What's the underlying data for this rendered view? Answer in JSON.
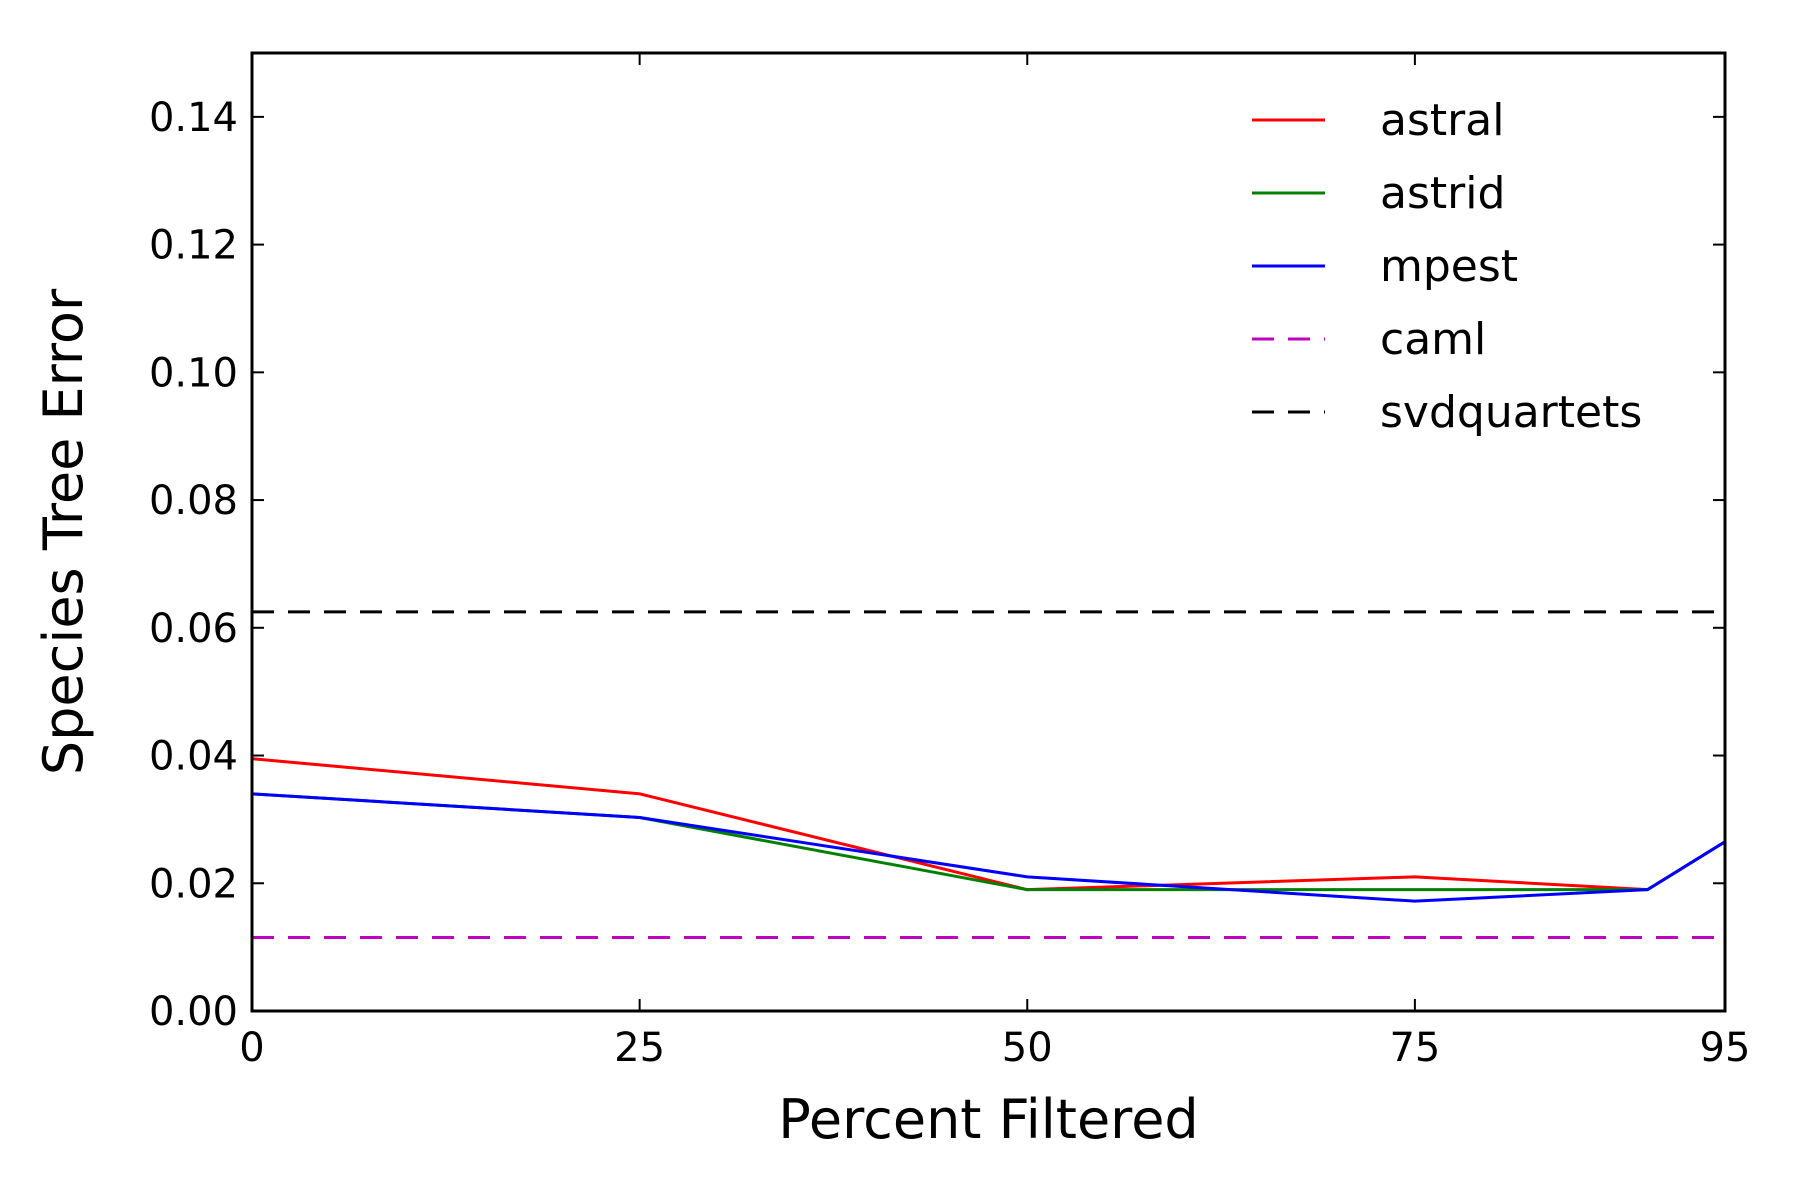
{
  "chart_data": {
    "type": "line",
    "title": "",
    "xlabel": "Percent Filtered",
    "ylabel": "Species Tree Error",
    "xlim": [
      0,
      95
    ],
    "ylim": [
      0.0,
      0.15
    ],
    "x_ticks": [
      0,
      25,
      50,
      75,
      95
    ],
    "x_tick_labels": [
      "0",
      "25",
      "50",
      "75",
      "95"
    ],
    "y_ticks": [
      0.0,
      0.02,
      0.04,
      0.06,
      0.08,
      0.1,
      0.12,
      0.14
    ],
    "y_tick_labels": [
      "0.00",
      "0.02",
      "0.04",
      "0.06",
      "0.08",
      "0.10",
      "0.12",
      "0.14"
    ],
    "grid": false,
    "legend_position": "top-right",
    "series": [
      {
        "name": "astral",
        "color": "#ff0000",
        "style": "solid",
        "x": [
          0,
          25,
          50,
          75,
          90,
          95
        ],
        "y": [
          0.0395,
          0.034,
          0.019,
          0.021,
          0.019,
          0.0265
        ]
      },
      {
        "name": "astrid",
        "color": "#008000",
        "style": "solid",
        "x": [
          0,
          25,
          50,
          75,
          90,
          95
        ],
        "y": [
          0.034,
          0.0303,
          0.019,
          0.019,
          0.019,
          0.0265
        ]
      },
      {
        "name": "mpest",
        "color": "#0000ff",
        "style": "solid",
        "x": [
          0,
          25,
          50,
          75,
          90,
          95
        ],
        "y": [
          0.034,
          0.0303,
          0.021,
          0.0172,
          0.019,
          0.0265
        ]
      },
      {
        "name": "caml",
        "color": "#bf00bf",
        "style": "dashed",
        "x": [
          0,
          95
        ],
        "y": [
          0.0115,
          0.0115
        ]
      },
      {
        "name": "svdquartets",
        "color": "#000000",
        "style": "dashed",
        "x": [
          0,
          95
        ],
        "y": [
          0.0625,
          0.0625
        ]
      }
    ]
  }
}
